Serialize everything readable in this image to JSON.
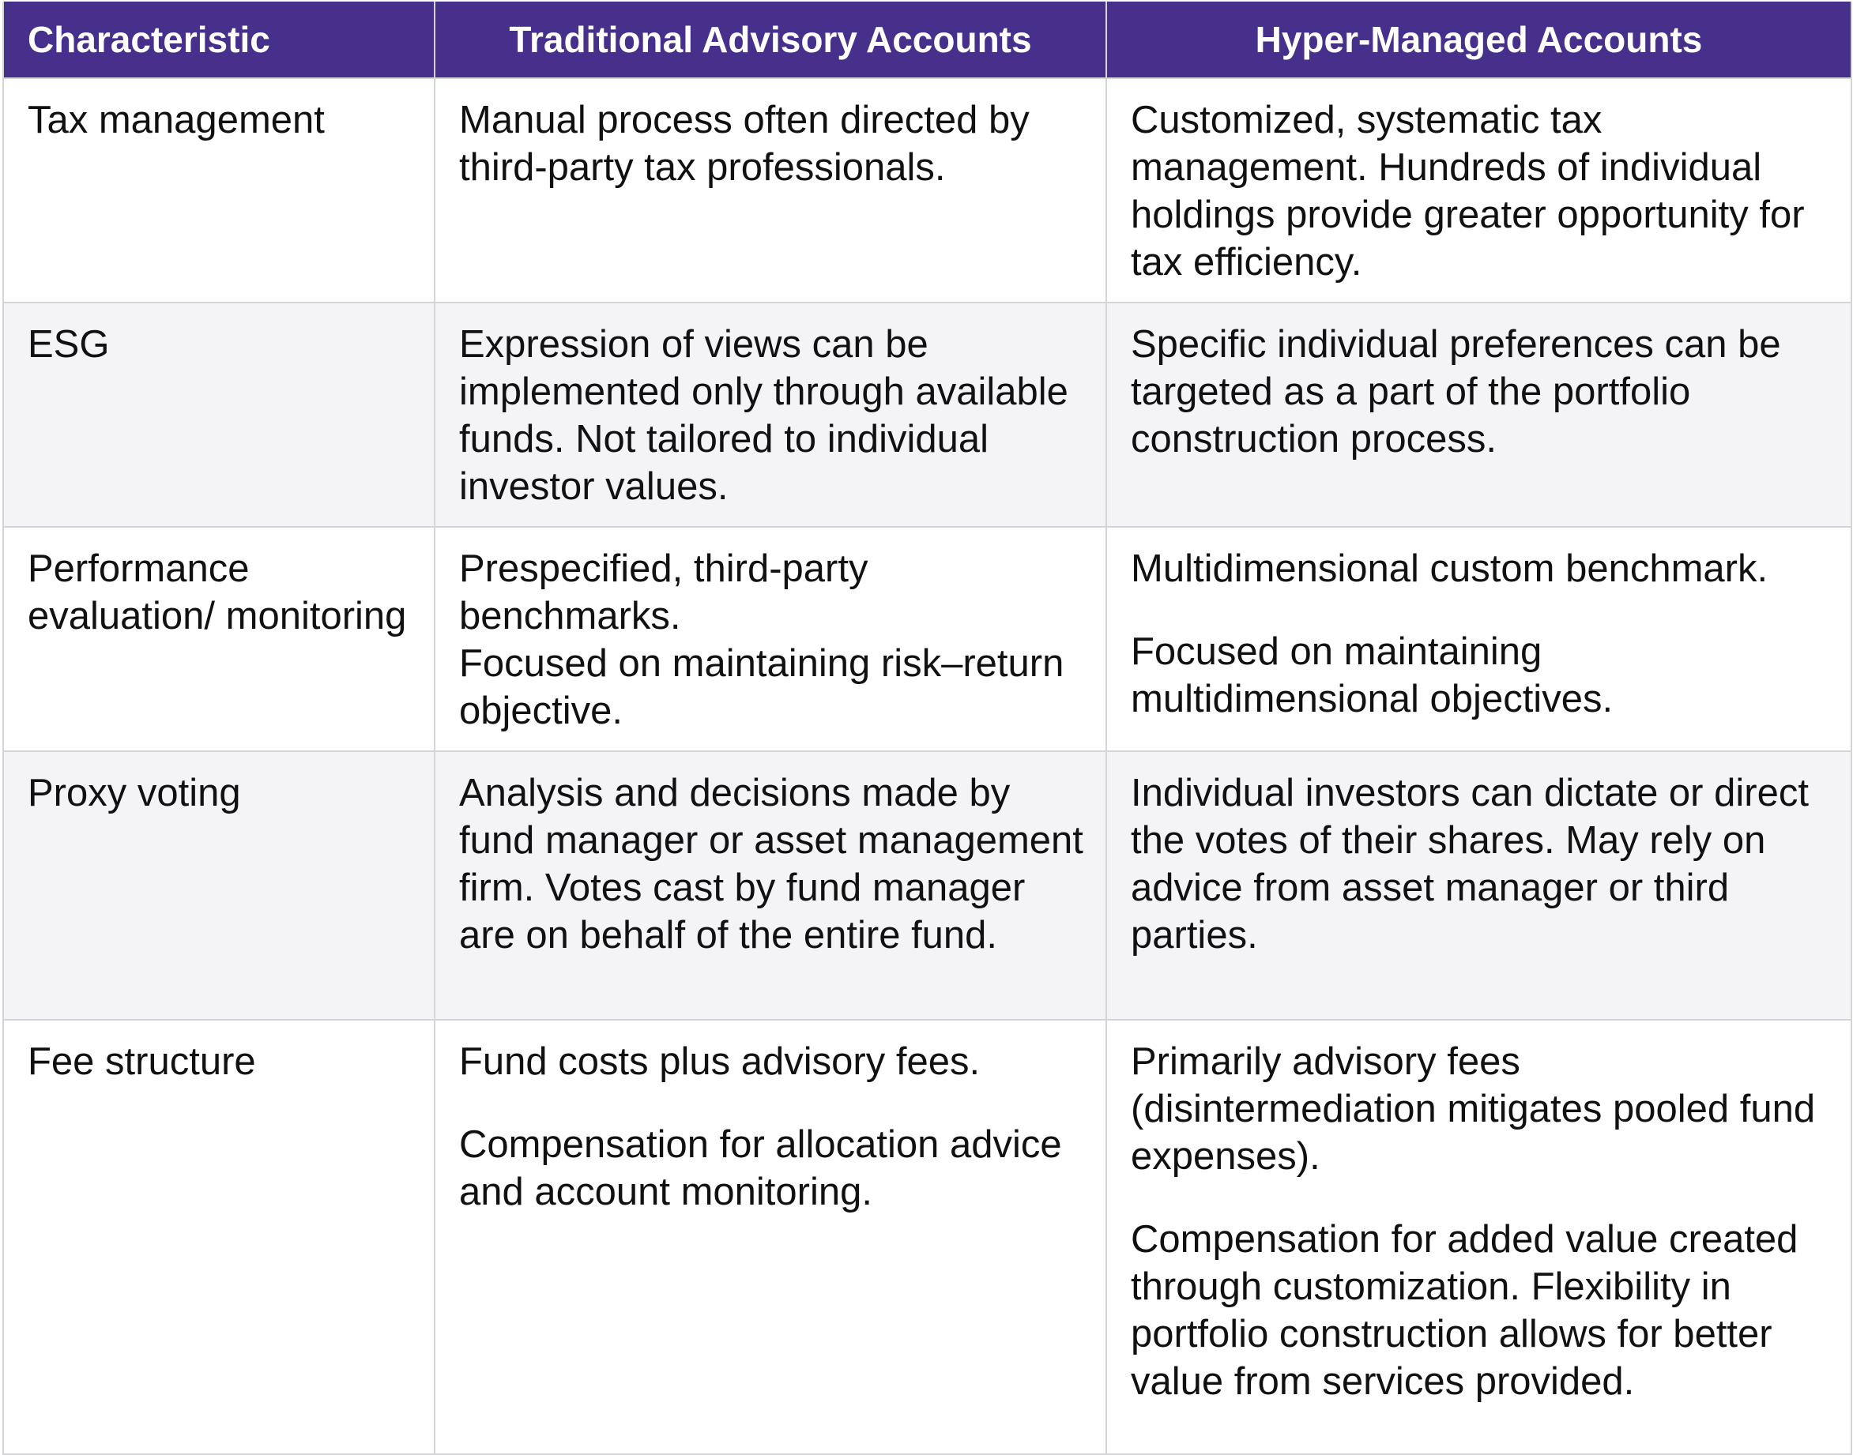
{
  "table": {
    "headers": [
      "Characteristic",
      "Traditional Advisory Accounts",
      "Hyper-Managed Accounts"
    ],
    "rows": [
      {
        "characteristic": "Tax management",
        "traditional": [
          "Manual process often directed by third-party tax professionals."
        ],
        "hyper": [
          "Customized, systematic tax management. Hundreds of individual holdings provide greater opportunity for tax efficiency."
        ]
      },
      {
        "characteristic": "ESG",
        "traditional": [
          "Expression of views can be implemented only through available funds. Not tailored to individual investor values."
        ],
        "hyper": [
          "Specific individual preferences can be targeted as a part of the portfolio construction process."
        ]
      },
      {
        "characteristic": "Performance evaluation/ monitoring",
        "traditional": [
          "Prespecified, third-party benchmarks.",
          "Focused on maintaining risk–return objective."
        ],
        "hyper": [
          "Multidimensional custom benchmark.",
          "Focused on maintaining multidimensional objectives."
        ]
      },
      {
        "characteristic": "Proxy voting",
        "traditional": [
          "Analysis and decisions made by fund manager or asset management firm. Votes cast by fund manager are on behalf of the entire fund."
        ],
        "hyper": [
          "Individual investors can dictate or direct the votes of their shares. May rely on advice from asset manager or third parties."
        ]
      },
      {
        "characteristic": "Fee structure",
        "traditional": [
          "Fund costs plus advisory fees.",
          "Compensation for allocation advice and account monitoring."
        ],
        "hyper": [
          "Primarily advisory fees (disintermediation mitigates pooled fund expenses).",
          "Compensation for added value created through customization. Flexibility in portfolio construction allows for better value from services provided."
        ]
      }
    ]
  },
  "colors": {
    "header_bg": "#46308b",
    "header_text": "#ffffff",
    "row_shade": "#f4f4f7",
    "border": "#d5d5d8"
  }
}
